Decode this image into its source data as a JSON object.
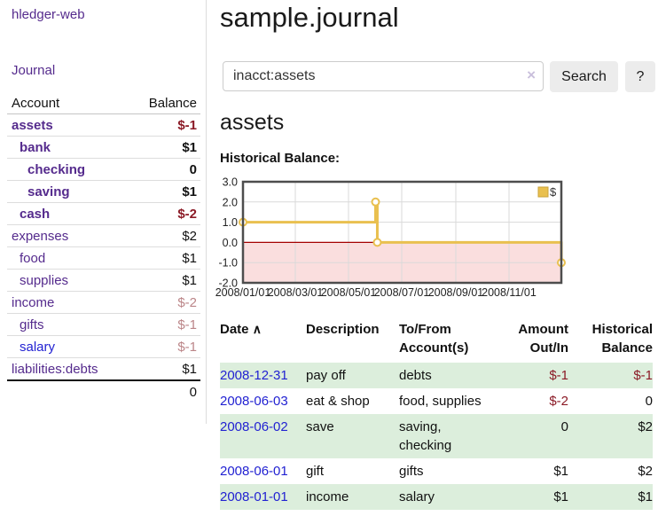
{
  "app": {
    "brand": "hledger-web",
    "nav_journal": "Journal"
  },
  "header": {
    "title": "sample.journal"
  },
  "search": {
    "query": "inacct:assets",
    "clear_icon": "×",
    "button": "Search",
    "help_button": "?"
  },
  "account_page": {
    "heading": "assets",
    "chart_label": "Historical Balance:"
  },
  "sidebar": {
    "accounts_header": {
      "account": "Account",
      "balance": "Balance"
    },
    "accounts": [
      {
        "name": "assets",
        "depth": 1,
        "balance": "$-1",
        "bold": true,
        "neg": "strong",
        "link": "purple"
      },
      {
        "name": "bank",
        "depth": 2,
        "balance": "$1",
        "bold": true,
        "neg": "none",
        "link": "purple"
      },
      {
        "name": "checking",
        "depth": 3,
        "balance": "0",
        "bold": true,
        "neg": "none",
        "link": "purple"
      },
      {
        "name": "saving",
        "depth": 3,
        "balance": "$1",
        "bold": true,
        "neg": "none",
        "link": "purple"
      },
      {
        "name": "cash",
        "depth": 2,
        "balance": "$-2",
        "bold": true,
        "neg": "strong",
        "link": "purple"
      },
      {
        "name": "expenses",
        "depth": 1,
        "balance": "$2",
        "bold": false,
        "neg": "none",
        "link": "purple"
      },
      {
        "name": "food",
        "depth": 2,
        "balance": "$1",
        "bold": false,
        "neg": "none",
        "link": "purple"
      },
      {
        "name": "supplies",
        "depth": 2,
        "balance": "$1",
        "bold": false,
        "neg": "none",
        "link": "purple"
      },
      {
        "name": "income",
        "depth": 1,
        "balance": "$-2",
        "bold": false,
        "neg": "soft",
        "link": "purple"
      },
      {
        "name": "gifts",
        "depth": 2,
        "balance": "$-1",
        "bold": false,
        "neg": "soft",
        "link": "purple"
      },
      {
        "name": "salary",
        "depth": 2,
        "balance": "$-1",
        "bold": false,
        "neg": "soft",
        "link": "blue"
      },
      {
        "name": "liabilities:debts",
        "depth": 1,
        "balance": "$1",
        "bold": false,
        "neg": "none",
        "link": "purple"
      }
    ],
    "total": "0"
  },
  "chart_data": {
    "type": "line",
    "subtype": "step-after",
    "title": "Historical Balance",
    "series": [
      {
        "name": "$",
        "color": "#e9c04f",
        "points": [
          [
            "2008-01-01",
            1
          ],
          [
            "2008-06-01",
            2
          ],
          [
            "2008-06-03",
            0
          ],
          [
            "2008-12-31",
            -1
          ]
        ]
      }
    ],
    "xlim": [
      "2008-01-01",
      "2008-12-31"
    ],
    "ylim": [
      -2,
      3
    ],
    "y_ticks": [
      "3.0",
      "2.0",
      "1.0",
      "0.0",
      "-1.0",
      "-2.0"
    ],
    "x_ticks": [
      "2008/01/01",
      "2008/03/01",
      "2008/05/01",
      "2008/07/01",
      "2008/09/01",
      "2008/11/01"
    ],
    "legend": {
      "label": "$",
      "position": "top-right"
    },
    "grid": true,
    "negative_region_color": "#fadede",
    "zero_line_color": "#a40000",
    "line_color": "#e9c04f",
    "marker_fill": "#ffffff",
    "border_color": "#4d4d4d",
    "grid_color": "#d9d9d9"
  },
  "transactions": {
    "columns": {
      "date": "Date",
      "description": "Description",
      "tofrom": "To/From Account(s)",
      "amount": "Amount Out/In",
      "balance": "Historical Balance"
    },
    "sort_icon": "∧",
    "rows": [
      {
        "date": "2008-12-31",
        "description": "pay off",
        "accounts": "debts",
        "amount": "$-1",
        "balance": "$-1",
        "amount_neg": true,
        "balance_neg": true
      },
      {
        "date": "2008-06-03",
        "description": "eat & shop",
        "accounts": "food, supplies",
        "amount": "$-2",
        "balance": "0",
        "amount_neg": true,
        "balance_neg": false
      },
      {
        "date": "2008-06-02",
        "description": "save",
        "accounts": "saving, checking",
        "amount": "0",
        "balance": "$2",
        "amount_neg": false,
        "balance_neg": false
      },
      {
        "date": "2008-06-01",
        "description": "gift",
        "accounts": "gifts",
        "amount": "$1",
        "balance": "$2",
        "amount_neg": false,
        "balance_neg": false
      },
      {
        "date": "2008-01-01",
        "description": "income",
        "accounts": "salary",
        "amount": "$1",
        "balance": "$1",
        "amount_neg": false,
        "balance_neg": false
      }
    ]
  },
  "colors": {
    "link_purple": "#552b8d",
    "link_blue": "#2222d2",
    "negative_strong": "#8b1a26",
    "negative_soft": "#bb8588",
    "row_stripe_green": "#dceedc",
    "chart_gold": "#e9c04f",
    "chart_negative_region": "#fadede",
    "zero_line_red": "#a40000",
    "button_gray": "#ececec"
  }
}
